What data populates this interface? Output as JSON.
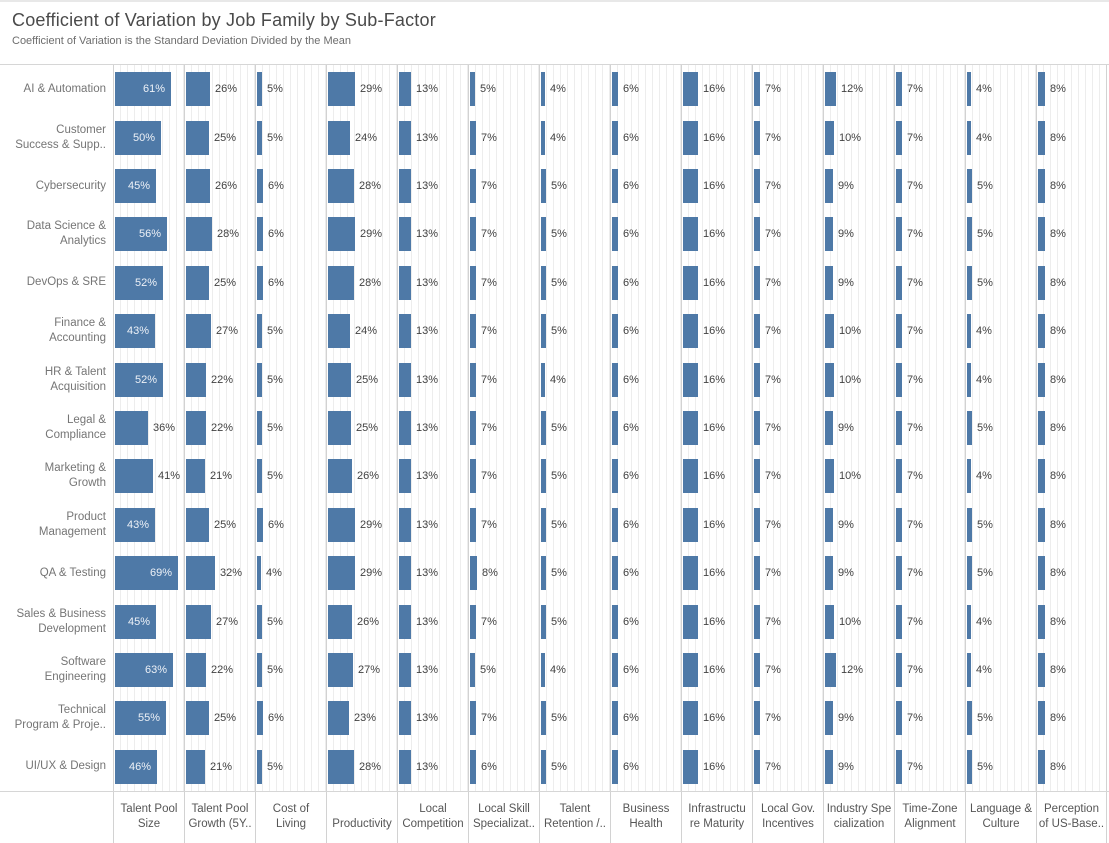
{
  "header": {
    "title": "Coefficient of Variation by Job Family by Sub-Factor",
    "subtitle": "Coefficient of Variation is the Standard Deviation Divided by the Mean"
  },
  "chart_data": {
    "type": "bar",
    "orientation": "horizontal",
    "title": "Coefficient of Variation by Job Family by Sub-Factor",
    "subtitle": "Coefficient of Variation is the Standard Deviation Divided by the Mean",
    "value_unit": "%",
    "axis_max": 77,
    "grid": true,
    "bar_color": "#4e79a7",
    "inside_label_min": 43,
    "categories": [
      "AI & Automation",
      "Customer\nSuccess & Supp..",
      "Cybersecurity",
      "Data Science &\nAnalytics",
      "DevOps & SRE",
      "Finance &\nAccounting",
      "HR & Talent\nAcquisition",
      "Legal &\nCompliance",
      "Marketing &\nGrowth",
      "Product\nManagement",
      "QA & Testing",
      "Sales & Business\nDevelopment",
      "Software\nEngineering",
      "Technical\nProgram & Proje..",
      "UI/UX & Design"
    ],
    "columns": [
      "Talent Pool\nSize",
      "Talent Pool\nGrowth (5Y..",
      "Cost of\nLiving",
      "Productivity",
      "Local\nCompetition",
      "Local Skill\nSpecializat..",
      "Talent\nRetention /..",
      "Business\nHealth",
      "Infrastructu\nre Maturity",
      "Local Gov.\nIncentives",
      "Industry Spe\ncialization",
      "Time-Zone\nAlignment",
      "Language &\nCulture",
      "Perception\nof US-Base.."
    ],
    "values": [
      [
        61,
        26,
        5,
        29,
        13,
        5,
        4,
        6,
        16,
        7,
        12,
        7,
        4,
        8
      ],
      [
        50,
        25,
        5,
        24,
        13,
        7,
        4,
        6,
        16,
        7,
        10,
        7,
        4,
        8
      ],
      [
        45,
        26,
        6,
        28,
        13,
        7,
        5,
        6,
        16,
        7,
        9,
        7,
        5,
        8
      ],
      [
        56,
        28,
        6,
        29,
        13,
        7,
        5,
        6,
        16,
        7,
        9,
        7,
        5,
        8
      ],
      [
        52,
        25,
        6,
        28,
        13,
        7,
        5,
        6,
        16,
        7,
        9,
        7,
        5,
        8
      ],
      [
        43,
        27,
        5,
        24,
        13,
        7,
        5,
        6,
        16,
        7,
        10,
        7,
        4,
        8
      ],
      [
        52,
        22,
        5,
        25,
        13,
        7,
        4,
        6,
        16,
        7,
        10,
        7,
        4,
        8
      ],
      [
        36,
        22,
        5,
        25,
        13,
        7,
        5,
        6,
        16,
        7,
        9,
        7,
        5,
        8
      ],
      [
        41,
        21,
        5,
        26,
        13,
        7,
        5,
        6,
        16,
        7,
        10,
        7,
        4,
        8
      ],
      [
        43,
        25,
        6,
        29,
        13,
        7,
        5,
        6,
        16,
        7,
        9,
        7,
        5,
        8
      ],
      [
        69,
        32,
        4,
        29,
        13,
        8,
        5,
        6,
        16,
        7,
        9,
        7,
        5,
        8
      ],
      [
        45,
        27,
        5,
        26,
        13,
        7,
        5,
        6,
        16,
        7,
        10,
        7,
        4,
        8
      ],
      [
        63,
        22,
        5,
        27,
        13,
        5,
        4,
        6,
        16,
        7,
        12,
        7,
        4,
        8
      ],
      [
        55,
        25,
        6,
        23,
        13,
        7,
        5,
        6,
        16,
        7,
        9,
        7,
        5,
        8
      ],
      [
        46,
        21,
        5,
        28,
        13,
        6,
        5,
        6,
        16,
        7,
        9,
        7,
        5,
        8
      ]
    ]
  }
}
